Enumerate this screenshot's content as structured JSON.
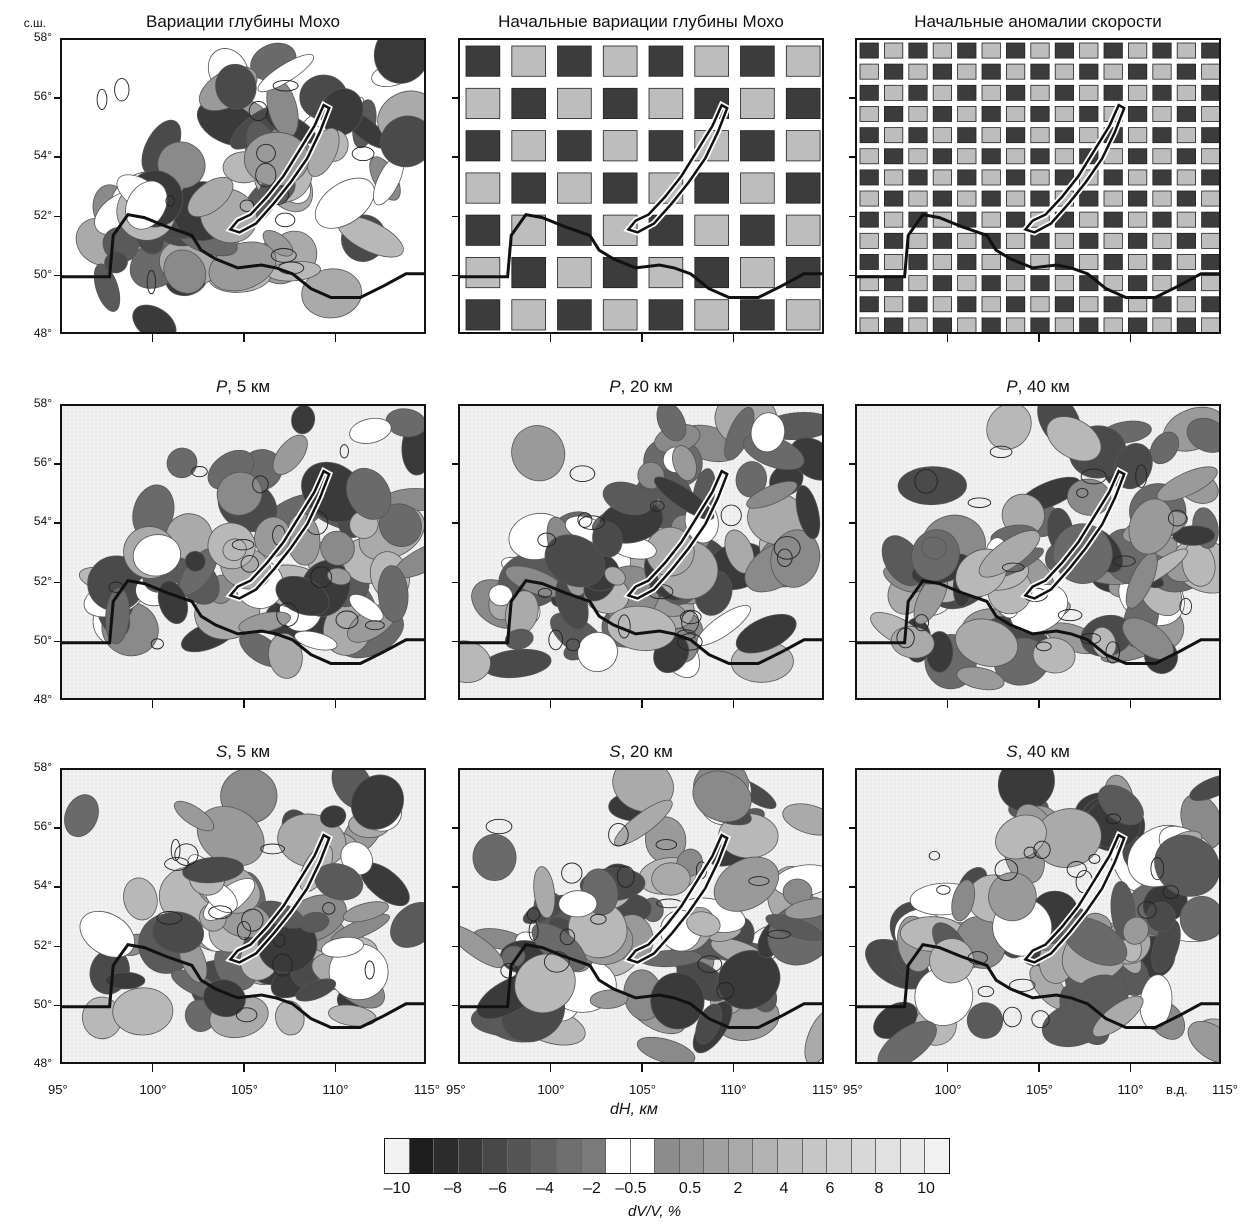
{
  "corner_labels": {
    "north": "с.ш.",
    "east": "в.д."
  },
  "panels": [
    {
      "title_italic": "",
      "title_rest": "Вариации глубины Мохо",
      "type": "blobs"
    },
    {
      "title_italic": "",
      "title_rest": "Начальные вариации глубины Мохо",
      "type": "checker_coarse"
    },
    {
      "title_italic": "",
      "title_rest": "Начальные аномалии скорости",
      "type": "checker_fine"
    },
    {
      "title_italic": "P",
      "title_rest": ", 5 км",
      "type": "blobs"
    },
    {
      "title_italic": "P",
      "title_rest": ", 20 км",
      "type": "blobs"
    },
    {
      "title_italic": "P",
      "title_rest": ", 40 км",
      "type": "blobs"
    },
    {
      "title_italic": "S",
      "title_rest": ", 5 км",
      "type": "blobs"
    },
    {
      "title_italic": "S",
      "title_rest": ", 20 км",
      "type": "blobs"
    },
    {
      "title_italic": "S",
      "title_rest": ", 40 км",
      "type": "blobs"
    }
  ],
  "lat_labels": [
    "58°",
    "56°",
    "54°",
    "52°",
    "50°",
    "48°"
  ],
  "lon_labels": [
    "95°",
    "100°",
    "105°",
    "110°",
    "115°"
  ],
  "x_axis_caption": "dH, км",
  "colorbar": {
    "labels": [
      "–10",
      "–8",
      "–6",
      "–4",
      "–2",
      "–0.5",
      "0.5",
      "2",
      "4",
      "6",
      "8",
      "10"
    ],
    "caption": "dV/V, %",
    "colors": [
      "#f2f2f2",
      "#1e1e1e",
      "#2c2c2c",
      "#3a3a3a",
      "#484848",
      "#555555",
      "#626262",
      "#6e6e6e",
      "#7a7a7a",
      "#ffffff",
      "#ffffff",
      "#8c8c8c",
      "#969696",
      "#a0a0a0",
      "#aaaaaa",
      "#b3b3b3",
      "#bdbdbd",
      "#c6c6c6",
      "#cfcfcf",
      "#d8d8d8",
      "#e1e1e1",
      "#e9e9e9",
      "#f1f1f1"
    ]
  }
}
